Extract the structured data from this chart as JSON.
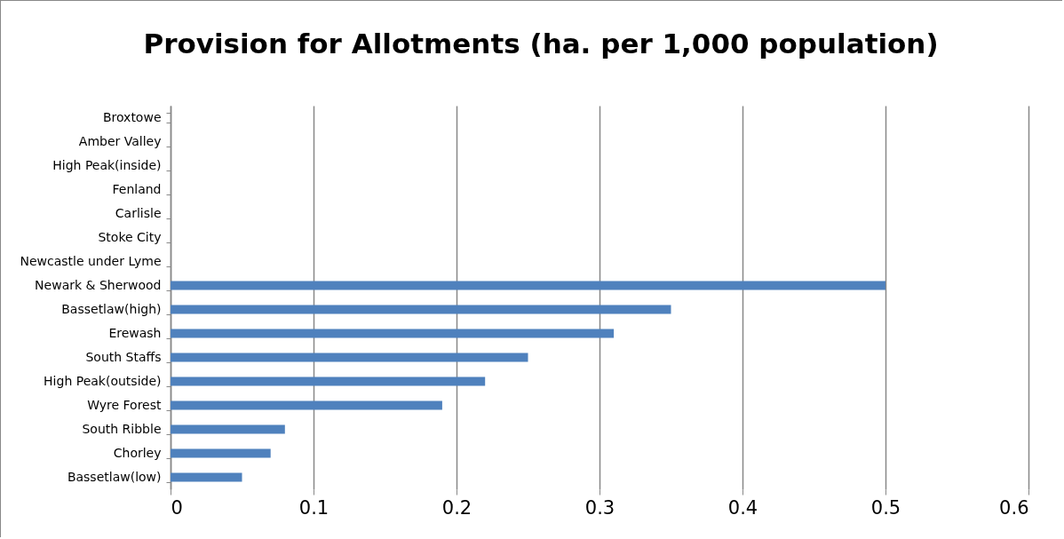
{
  "chart_data": {
    "type": "bar",
    "orientation": "horizontal",
    "title": "Provision for Allotments (ha. per 1,000 population)",
    "categories": [
      "Broxtowe",
      "Amber Valley",
      "High Peak(inside)",
      "Fenland",
      "Carlisle",
      "Stoke City",
      "Newcastle under Lyme",
      "Newark & Sherwood",
      "Bassetlaw(high)",
      "Erewash",
      "South Staffs",
      "High Peak(outside)",
      "Wyre Forest",
      "South Ribble",
      "Chorley",
      "Bassetlaw(low)"
    ],
    "values": [
      null,
      null,
      null,
      null,
      null,
      null,
      null,
      0.5,
      0.35,
      0.31,
      0.25,
      0.22,
      0.19,
      0.08,
      0.07,
      0.05
    ],
    "color": "#4f81bd",
    "xlim": [
      0,
      0.6
    ],
    "xticks": [
      0,
      0.1,
      0.2,
      0.3,
      0.4,
      0.5,
      0.6
    ],
    "grid": "x"
  }
}
